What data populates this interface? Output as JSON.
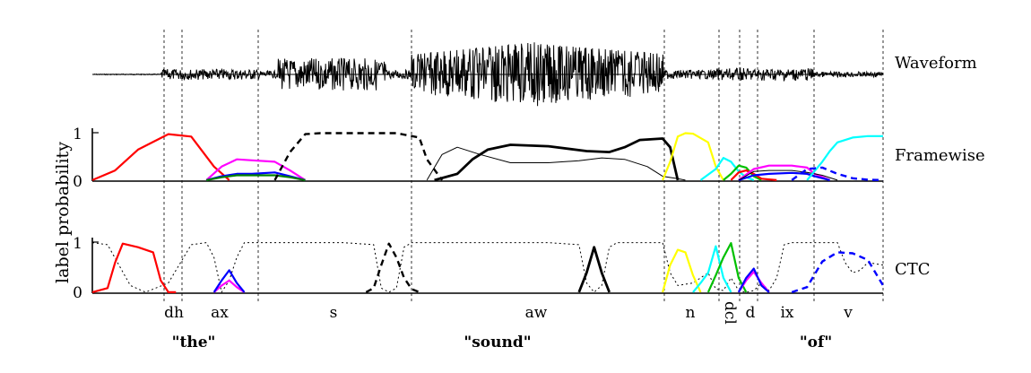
{
  "chart_data": {
    "type": "line",
    "ylabel": "label probability",
    "panels": [
      {
        "name": "Waveform",
        "label": "Waveform"
      },
      {
        "name": "Framewise",
        "label": "Framewise",
        "ylim": [
          0,
          1
        ],
        "yticks": [
          "0",
          "1"
        ]
      },
      {
        "name": "CTC",
        "label": "CTC",
        "ylim": [
          0,
          1
        ],
        "yticks": [
          "0",
          "1"
        ]
      }
    ],
    "phones": [
      "dh",
      "ax",
      "s",
      "aw",
      "n",
      "dcl",
      "d",
      "ix",
      "v"
    ],
    "words": [
      "\"the\"",
      "\"sound\"",
      "\"of\""
    ],
    "framewise_series": [
      {
        "color": "#ff0000",
        "style": "solid",
        "x": [
          0,
          3,
          6,
          10,
          13,
          16,
          18
        ],
        "y": [
          0.02,
          0.22,
          0.65,
          0.97,
          0.92,
          0.3,
          0.02
        ]
      },
      {
        "color": "#ff00ff",
        "style": "solid",
        "x": [
          15,
          17,
          19,
          21,
          24,
          26,
          28
        ],
        "y": [
          0.02,
          0.3,
          0.45,
          0.43,
          0.4,
          0.22,
          0.02
        ]
      },
      {
        "color": "#0000ff",
        "style": "solid",
        "x": [
          15,
          17,
          19,
          21,
          24,
          26,
          28
        ],
        "y": [
          0.02,
          0.1,
          0.15,
          0.15,
          0.18,
          0.1,
          0.02
        ]
      },
      {
        "color": "#008000",
        "style": "solid",
        "x": [
          15,
          17,
          19,
          21,
          24,
          26,
          28
        ],
        "y": [
          0.02,
          0.08,
          0.12,
          0.12,
          0.12,
          0.08,
          0.02
        ]
      },
      {
        "color": "#000000",
        "style": "dashed",
        "x": [
          24,
          26,
          28,
          30,
          36,
          40,
          43,
          44,
          46
        ],
        "y": [
          0.02,
          0.6,
          0.97,
          0.99,
          0.99,
          0.99,
          0.9,
          0.45,
          0.02
        ]
      },
      {
        "color": "#000000",
        "style": "thin",
        "x": [
          44,
          46,
          48,
          51,
          55,
          60,
          64,
          67,
          70,
          73,
          75,
          77,
          78
        ],
        "y": [
          0.02,
          0.55,
          0.7,
          0.55,
          0.38,
          0.38,
          0.42,
          0.48,
          0.45,
          0.3,
          0.1,
          0.05,
          0.02
        ]
      },
      {
        "color": "#000000",
        "style": "bold",
        "x": [
          45,
          48,
          50,
          52,
          55,
          60,
          65,
          68,
          70,
          72,
          75,
          76,
          77
        ],
        "y": [
          0.02,
          0.15,
          0.45,
          0.65,
          0.75,
          0.72,
          0.62,
          0.6,
          0.7,
          0.85,
          0.88,
          0.7,
          0.02
        ]
      },
      {
        "color": "#ffff00",
        "style": "solid",
        "x": [
          75,
          76,
          77,
          78,
          79,
          81,
          82,
          83
        ],
        "y": [
          0.02,
          0.4,
          0.92,
          0.99,
          0.98,
          0.8,
          0.3,
          0.02
        ]
      },
      {
        "color": "#00ffff",
        "style": "solid",
        "x": [
          80,
          82,
          83,
          84,
          85,
          86,
          87
        ],
        "y": [
          0.02,
          0.25,
          0.48,
          0.4,
          0.2,
          0.08,
          0.02
        ]
      },
      {
        "color": "#00c000",
        "style": "solid",
        "x": [
          83,
          84,
          85,
          86,
          87,
          88
        ],
        "y": [
          0.02,
          0.15,
          0.32,
          0.28,
          0.1,
          0.02
        ]
      },
      {
        "color": "#ff0000",
        "style": "solid",
        "x": [
          84,
          85,
          86,
          87,
          88,
          90
        ],
        "y": [
          0.02,
          0.18,
          0.22,
          0.15,
          0.05,
          0.02
        ]
      },
      {
        "color": "#ff00ff",
        "style": "solid",
        "x": [
          85,
          87,
          89,
          92,
          94,
          95,
          97
        ],
        "y": [
          0.02,
          0.25,
          0.32,
          0.32,
          0.28,
          0.15,
          0.02
        ]
      },
      {
        "color": "#0000ff",
        "style": "solid",
        "x": [
          85,
          87,
          89,
          92,
          94,
          95,
          97
        ],
        "y": [
          0.02,
          0.12,
          0.15,
          0.17,
          0.15,
          0.1,
          0.02
        ]
      },
      {
        "color": "#000000",
        "style": "thin",
        "x": [
          85,
          87,
          89,
          92,
          94,
          96,
          98
        ],
        "y": [
          0.02,
          0.2,
          0.22,
          0.22,
          0.18,
          0.12,
          0.02
        ]
      },
      {
        "color": "#00ffff",
        "style": "solid",
        "x": [
          94,
          96,
          97,
          98,
          100,
          102,
          104
        ],
        "y": [
          0.02,
          0.4,
          0.62,
          0.8,
          0.9,
          0.93,
          0.93
        ]
      },
      {
        "color": "#0000ff",
        "style": "dashed",
        "x": [
          92,
          94,
          96,
          98,
          100,
          102,
          104
        ],
        "y": [
          0.02,
          0.25,
          0.28,
          0.15,
          0.06,
          0.03,
          0.02
        ]
      }
    ],
    "ctc_series": [
      {
        "color": "#000000",
        "style": "dotted",
        "x": [
          0,
          2,
          5,
          7,
          10,
          13,
          15,
          16,
          17,
          18,
          19,
          20,
          21,
          22,
          24,
          28,
          33,
          37,
          38,
          39,
          40,
          41,
          42,
          43,
          45,
          60,
          64,
          65,
          66,
          67,
          68,
          69,
          72,
          75,
          76,
          77,
          79,
          81,
          82,
          83,
          84,
          85,
          86,
          87,
          88,
          89,
          90,
          91,
          92,
          93,
          95,
          98,
          99,
          100,
          101,
          102,
          104
        ],
        "y": [
          0.99,
          0.95,
          0.15,
          0.02,
          0.2,
          0.95,
          0.99,
          0.7,
          0.02,
          0.25,
          0.7,
          0.99,
          0.99,
          0.99,
          0.99,
          0.99,
          0.99,
          0.95,
          0.1,
          0.02,
          0.1,
          0.9,
          0.99,
          0.99,
          0.99,
          0.99,
          0.95,
          0.2,
          0.02,
          0.15,
          0.9,
          0.99,
          0.99,
          0.99,
          0.4,
          0.15,
          0.2,
          0.4,
          0.08,
          0.05,
          0.3,
          0.05,
          0.02,
          0.05,
          0.2,
          0.05,
          0.3,
          0.95,
          0.99,
          0.99,
          0.99,
          0.99,
          0.6,
          0.4,
          0.45,
          0.6,
          0.55
        ]
      },
      {
        "color": "#ff0000",
        "style": "solid",
        "x": [
          0,
          2,
          3,
          4,
          6,
          8,
          9,
          10,
          11
        ],
        "y": [
          0.02,
          0.1,
          0.6,
          0.97,
          0.9,
          0.8,
          0.25,
          0.02,
          0.02
        ]
      },
      {
        "color": "#ff00ff",
        "style": "solid",
        "x": [
          16,
          17,
          18,
          19,
          20
        ],
        "y": [
          0.02,
          0.15,
          0.25,
          0.12,
          0.02
        ]
      },
      {
        "color": "#0000ff",
        "style": "solid",
        "x": [
          16,
          17,
          18,
          19,
          20
        ],
        "y": [
          0.02,
          0.25,
          0.45,
          0.2,
          0.02
        ]
      },
      {
        "color": "#000000",
        "style": "dashed",
        "x": [
          36,
          37,
          38,
          39,
          40,
          41,
          42,
          43
        ],
        "y": [
          0.02,
          0.1,
          0.55,
          0.97,
          0.7,
          0.3,
          0.08,
          0.02
        ]
      },
      {
        "color": "#000000",
        "style": "bold",
        "x": [
          64,
          65,
          66,
          67,
          68
        ],
        "y": [
          0.02,
          0.4,
          0.9,
          0.4,
          0.02
        ]
      },
      {
        "color": "#ffff00",
        "style": "solid",
        "x": [
          75,
          76,
          77,
          78,
          79,
          80
        ],
        "y": [
          0.02,
          0.55,
          0.85,
          0.8,
          0.35,
          0.02
        ]
      },
      {
        "color": "#00ffff",
        "style": "solid",
        "x": [
          79,
          80,
          81,
          82,
          83,
          84
        ],
        "y": [
          0.02,
          0.2,
          0.4,
          0.92,
          0.3,
          0.02
        ]
      },
      {
        "color": "#00c000",
        "style": "solid",
        "x": [
          81,
          82,
          83,
          84,
          85,
          86
        ],
        "y": [
          0.02,
          0.35,
          0.7,
          0.98,
          0.3,
          0.02
        ]
      },
      {
        "color": "#ff00ff",
        "style": "solid",
        "x": [
          85,
          86,
          87,
          88,
          89
        ],
        "y": [
          0.02,
          0.25,
          0.42,
          0.2,
          0.02
        ]
      },
      {
        "color": "#0000ff",
        "style": "solid",
        "x": [
          85,
          86,
          87,
          88,
          89
        ],
        "y": [
          0.02,
          0.3,
          0.48,
          0.15,
          0.02
        ]
      },
      {
        "color": "#0000ff",
        "style": "dashed",
        "x": [
          92,
          94,
          96,
          98,
          100,
          102,
          104
        ],
        "y": [
          0.02,
          0.12,
          0.62,
          0.8,
          0.78,
          0.65,
          0.15
        ]
      }
    ]
  }
}
